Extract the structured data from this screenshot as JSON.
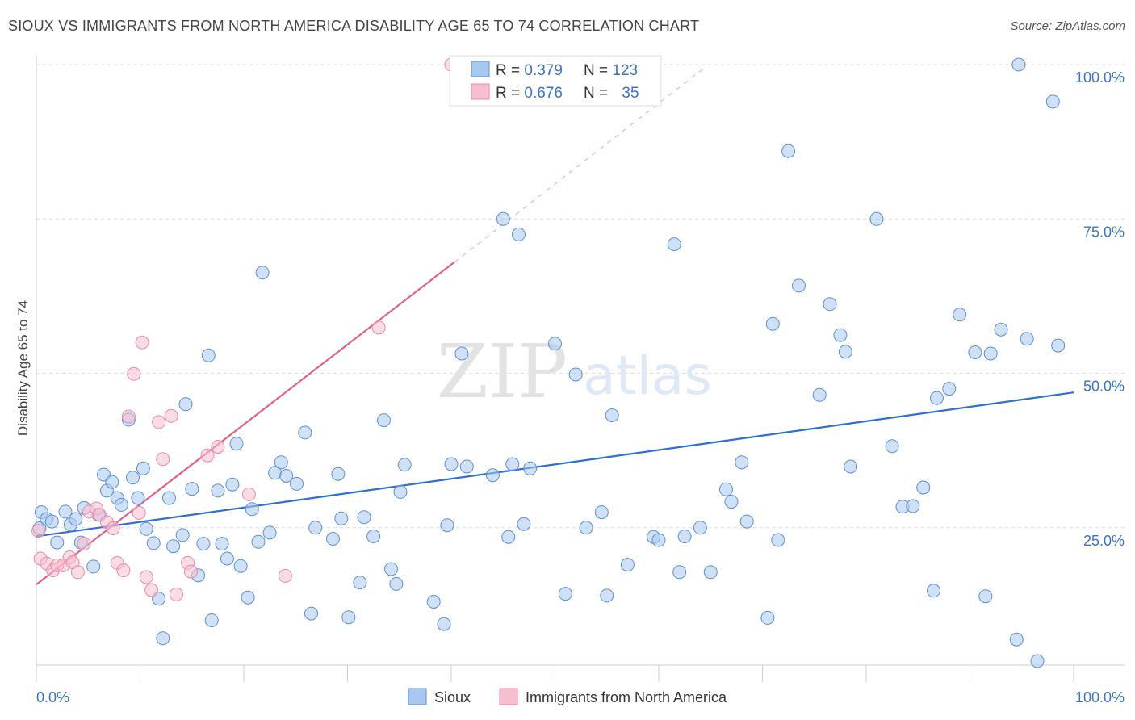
{
  "header": {
    "title": "SIOUX VS IMMIGRANTS FROM NORTH AMERICA DISABILITY AGE 65 TO 74 CORRELATION CHART",
    "source": "Source: ZipAtlas.com"
  },
  "watermark": {
    "zip": "ZIP",
    "atlas": "atlas"
  },
  "colors": {
    "blue_fill": "#a9c8ef",
    "blue_stroke": "#5b8fd6",
    "blue_line": "#2f6fce",
    "pink_fill": "#f6bfd0",
    "pink_stroke": "#e88aa8",
    "pink_line": "#e0628a",
    "axis_text": "#3a74c8"
  },
  "legend_top": [
    {
      "r_label": "R = ",
      "r_value": "0.379",
      "n_label": "N = ",
      "n_value": "123"
    },
    {
      "r_label": "R = ",
      "r_value": "0.676",
      "n_label": "N = ",
      "n_value": "35"
    }
  ],
  "chart_data": {
    "type": "scatter",
    "title": "SIOUX VS IMMIGRANTS FROM NORTH AMERICA DISABILITY AGE 65 TO 74 CORRELATION CHART",
    "xlabel": "",
    "ylabel": "Disability Age 65 to 74",
    "xlim": [
      0,
      100
    ],
    "ylim": [
      0,
      104
    ],
    "x_tick_labels": [
      "0.0%",
      "100.0%"
    ],
    "y_tick_labels": [
      "25.0%",
      "50.0%",
      "75.0%",
      "100.0%"
    ],
    "y_ticks": [
      25,
      50,
      75,
      100
    ],
    "grid": true,
    "legend_position": "bottom",
    "series": [
      {
        "name": "Sioux",
        "r": 0.379,
        "n": 123,
        "trend": {
          "x0": 0,
          "y0": 23.6,
          "x1": 100,
          "y1": 46.9
        },
        "points": [
          [
            0.3,
            24.9
          ],
          [
            0.5,
            27.5
          ],
          [
            1.0,
            26.4
          ],
          [
            1.5,
            26.0
          ],
          [
            2.0,
            22.6
          ],
          [
            2.8,
            27.6
          ],
          [
            3.3,
            25.5
          ],
          [
            3.8,
            26.4
          ],
          [
            4.3,
            22.6
          ],
          [
            4.6,
            28.2
          ],
          [
            5.5,
            18.7
          ],
          [
            6.0,
            27.1
          ],
          [
            6.5,
            33.6
          ],
          [
            6.8,
            31.0
          ],
          [
            7.3,
            32.4
          ],
          [
            7.8,
            29.8
          ],
          [
            8.2,
            28.7
          ],
          [
            8.9,
            42.5
          ],
          [
            9.3,
            33.1
          ],
          [
            9.8,
            29.8
          ],
          [
            10.3,
            34.6
          ],
          [
            10.6,
            24.8
          ],
          [
            11.3,
            22.5
          ],
          [
            11.8,
            13.5
          ],
          [
            12.2,
            7.1
          ],
          [
            12.8,
            29.8
          ],
          [
            13.2,
            22.0
          ],
          [
            14.1,
            23.8
          ],
          [
            14.4,
            45.0
          ],
          [
            15.0,
            31.3
          ],
          [
            15.6,
            17.3
          ],
          [
            16.1,
            22.4
          ],
          [
            16.6,
            52.9
          ],
          [
            16.9,
            10.0
          ],
          [
            17.5,
            31.0
          ],
          [
            17.9,
            22.4
          ],
          [
            18.4,
            20.0
          ],
          [
            18.9,
            32.0
          ],
          [
            19.3,
            38.6
          ],
          [
            19.7,
            18.8
          ],
          [
            20.4,
            13.7
          ],
          [
            20.8,
            28.0
          ],
          [
            21.4,
            22.7
          ],
          [
            21.8,
            66.3
          ],
          [
            22.5,
            24.2
          ],
          [
            23.0,
            33.9
          ],
          [
            23.6,
            35.6
          ],
          [
            24.1,
            33.4
          ],
          [
            25.1,
            32.1
          ],
          [
            25.9,
            40.4
          ],
          [
            26.5,
            11.1
          ],
          [
            26.9,
            25.0
          ],
          [
            28.6,
            23.2
          ],
          [
            29.1,
            33.7
          ],
          [
            29.4,
            26.5
          ],
          [
            30.1,
            10.5
          ],
          [
            31.2,
            16.1
          ],
          [
            31.6,
            26.7
          ],
          [
            32.5,
            23.6
          ],
          [
            33.5,
            42.4
          ],
          [
            34.2,
            18.3
          ],
          [
            34.7,
            15.9
          ],
          [
            35.1,
            30.8
          ],
          [
            35.5,
            35.2
          ],
          [
            38.3,
            13.0
          ],
          [
            39.3,
            9.4
          ],
          [
            39.6,
            25.4
          ],
          [
            40.0,
            35.3
          ],
          [
            41.0,
            53.2
          ],
          [
            41.5,
            34.9
          ],
          [
            44.0,
            33.5
          ],
          [
            45.0,
            75.0
          ],
          [
            45.5,
            23.5
          ],
          [
            45.9,
            35.3
          ],
          [
            46.5,
            72.5
          ],
          [
            47.0,
            25.6
          ],
          [
            47.6,
            34.6
          ],
          [
            50.0,
            54.8
          ],
          [
            51.0,
            14.3
          ],
          [
            52.0,
            49.8
          ],
          [
            53.0,
            25.0
          ],
          [
            54.5,
            27.5
          ],
          [
            55.0,
            14.0
          ],
          [
            55.5,
            43.2
          ],
          [
            57.0,
            19.0
          ],
          [
            59.5,
            23.5
          ],
          [
            60.0,
            23.0
          ],
          [
            61.5,
            70.9
          ],
          [
            62.0,
            17.8
          ],
          [
            62.5,
            23.6
          ],
          [
            64.0,
            25.0
          ],
          [
            65.0,
            17.8
          ],
          [
            66.5,
            31.2
          ],
          [
            67.0,
            29.2
          ],
          [
            68.0,
            35.6
          ],
          [
            68.5,
            26.0
          ],
          [
            70.5,
            10.4
          ],
          [
            71.0,
            58.0
          ],
          [
            71.5,
            23.0
          ],
          [
            72.5,
            86.0
          ],
          [
            73.5,
            64.2
          ],
          [
            75.5,
            46.5
          ],
          [
            76.5,
            61.2
          ],
          [
            77.5,
            56.2
          ],
          [
            78.0,
            53.5
          ],
          [
            78.5,
            34.9
          ],
          [
            81.0,
            75.0
          ],
          [
            82.5,
            38.2
          ],
          [
            83.5,
            28.4
          ],
          [
            84.5,
            28.5
          ],
          [
            85.5,
            31.5
          ],
          [
            86.5,
            14.8
          ],
          [
            86.8,
            46.0
          ],
          [
            88.0,
            47.5
          ],
          [
            89.0,
            59.5
          ],
          [
            90.5,
            53.4
          ],
          [
            91.5,
            13.9
          ],
          [
            92.0,
            53.2
          ],
          [
            93.0,
            57.1
          ],
          [
            94.5,
            6.9
          ],
          [
            94.7,
            100.0
          ],
          [
            95.5,
            55.6
          ],
          [
            96.5,
            3.4
          ],
          [
            98.0,
            94.0
          ],
          [
            98.5,
            54.5
          ]
        ]
      },
      {
        "name": "Immigrants from North America",
        "r": 0.676,
        "n": 35,
        "trend": {
          "x0": 0,
          "y0": 15.8,
          "x1": 40.3,
          "y1": 68.0
        },
        "trend_ext": {
          "x0": 40.3,
          "y0": 68.0,
          "x1": 64.5,
          "y1": 99.6
        },
        "points": [
          [
            0.2,
            24.5
          ],
          [
            0.4,
            20.0
          ],
          [
            1.0,
            19.2
          ],
          [
            1.6,
            18.1
          ],
          [
            2.0,
            18.9
          ],
          [
            2.6,
            18.9
          ],
          [
            3.2,
            20.2
          ],
          [
            3.5,
            19.4
          ],
          [
            4.0,
            17.8
          ],
          [
            4.6,
            22.4
          ],
          [
            5.1,
            27.6
          ],
          [
            5.8,
            28.1
          ],
          [
            6.1,
            27.1
          ],
          [
            6.8,
            25.9
          ],
          [
            7.4,
            24.9
          ],
          [
            7.8,
            19.3
          ],
          [
            8.4,
            18.1
          ],
          [
            8.9,
            43.0
          ],
          [
            9.4,
            49.9
          ],
          [
            9.9,
            27.4
          ],
          [
            10.2,
            55.0
          ],
          [
            10.6,
            17.0
          ],
          [
            11.1,
            14.9
          ],
          [
            11.8,
            42.1
          ],
          [
            12.2,
            36.1
          ],
          [
            13.0,
            43.1
          ],
          [
            13.5,
            14.2
          ],
          [
            14.6,
            19.3
          ],
          [
            14.9,
            17.9
          ],
          [
            16.5,
            36.7
          ],
          [
            17.5,
            38.1
          ],
          [
            20.5,
            30.4
          ],
          [
            24.0,
            17.2
          ],
          [
            33.0,
            57.4
          ],
          [
            40.0,
            100.0
          ]
        ]
      }
    ]
  },
  "legend_bottom": [
    {
      "label": "Sioux"
    },
    {
      "label": "Immigrants from North America"
    }
  ]
}
